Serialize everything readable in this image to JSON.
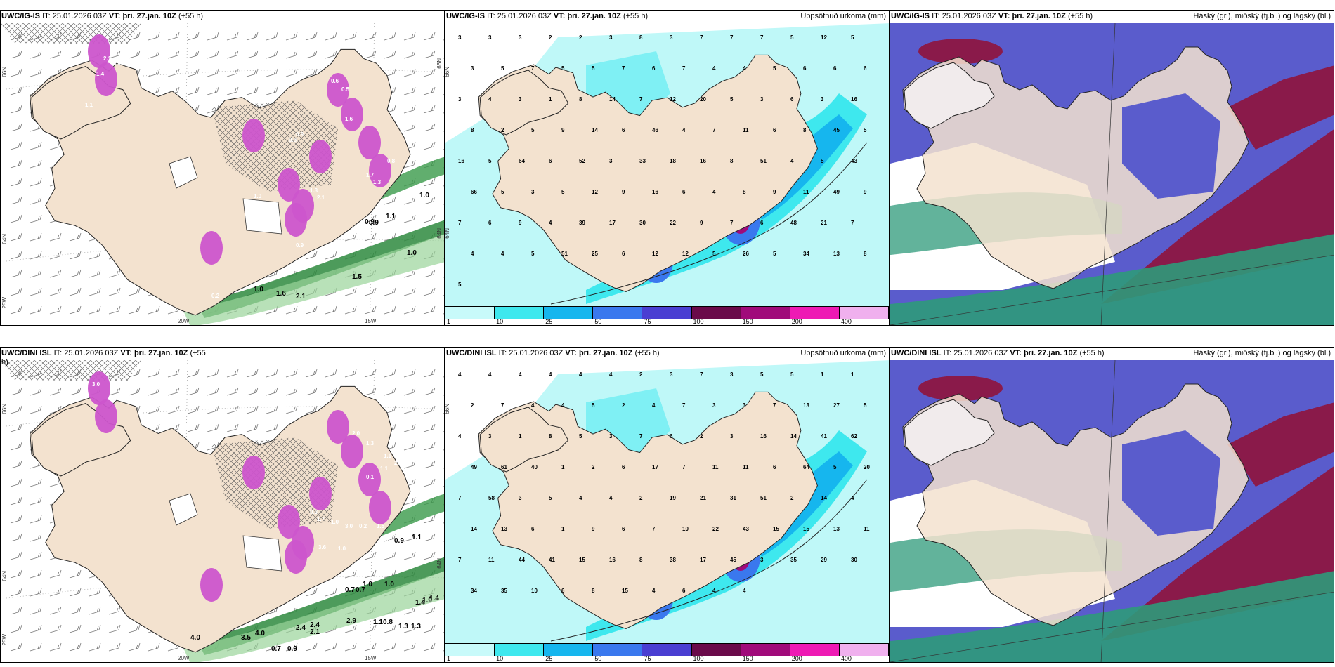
{
  "panels": [
    {
      "model": "UWC/IG-IS",
      "it_label": "IT:",
      "it": "25.01.2026 03Z",
      "vt_label": "VT:",
      "vt": "þri. 27.jan. 10Z",
      "lead": "(+55 h)",
      "right_title": "",
      "axis": {
        "lat_top": "66N",
        "lat_right_top": "66N",
        "lat_mid": "64N",
        "lat_right_mid": "64N",
        "lon_left": "25W",
        "lon1": "20W",
        "lon2": "15W"
      },
      "dark_labels": [
        "1.0",
        "0.9",
        "1.1",
        "0.9",
        "1.0",
        "1.5",
        "2.1",
        "1.6",
        "1.0"
      ],
      "white_labels": [
        "0.6",
        "1.3",
        "2.1",
        "1.4",
        "1.1",
        "0.8",
        "0.9",
        "1.6",
        "1.7",
        "1.3",
        "0.8",
        "1.3",
        "2.1",
        "1.0",
        "0.9",
        "1.7",
        "0.2",
        "0.6",
        "0.5"
      ]
    },
    {
      "model": "UWC/IG-IS",
      "it_label": "IT:",
      "it": "25.01.2026 03Z",
      "vt_label": "VT:",
      "vt": "þri. 27.jan. 10Z",
      "lead": "(+55 h)",
      "right_title": "Uppsöfnuð úrkoma (mm)",
      "axis": {
        "lat_top": "66N",
        "lat_mid": "64N"
      },
      "values": [
        "3",
        "3",
        "3",
        "2",
        "2",
        "3",
        "8",
        "3",
        "7",
        "7",
        "7",
        "5",
        "12",
        "5",
        "3",
        "5",
        "7",
        "5",
        "5",
        "7",
        "6",
        "7",
        "4",
        "4",
        "5",
        "6",
        "6",
        "6",
        "3",
        "4",
        "3",
        "1",
        "8",
        "14",
        "7",
        "12",
        "20",
        "5",
        "3",
        "6",
        "3",
        "16",
        "8",
        "2",
        "5",
        "9",
        "14",
        "6",
        "46",
        "4",
        "7",
        "11",
        "6",
        "8",
        "45",
        "5",
        "16",
        "5",
        "64",
        "6",
        "52",
        "3",
        "33",
        "18",
        "16",
        "8",
        "51",
        "4",
        "5",
        "43",
        "66",
        "5",
        "3",
        "5",
        "12",
        "9",
        "16",
        "6",
        "4",
        "8",
        "9",
        "11",
        "49",
        "9",
        "7",
        "6",
        "9",
        "4",
        "39",
        "17",
        "30",
        "22",
        "9",
        "7",
        "6",
        "48",
        "21",
        "7",
        "4",
        "4",
        "5",
        "51",
        "25",
        "6",
        "12",
        "12",
        "5",
        "26",
        "5",
        "34",
        "13",
        "8",
        "5"
      ],
      "colorbar": {
        "labels": [
          "1",
          "10",
          "25",
          "50",
          "75",
          "100",
          "150",
          "200",
          "400"
        ],
        "colors": [
          "#c8fafa",
          "#3ee8ee",
          "#16b6ee",
          "#3a78ee",
          "#4a3ed2",
          "#6a0a4a",
          "#a00a7a",
          "#ee1ab4",
          "#f0b0ee"
        ]
      }
    },
    {
      "model": "UWC/IG-IS",
      "it_label": "IT:",
      "it": "25.01.2026 03Z",
      "vt_label": "VT:",
      "vt": "þri. 27.jan. 10Z",
      "lead": "(+55 h)",
      "right_title": "Háský (gr.), miðský (fj.bl.) og lágský (bl.)"
    },
    {
      "model": "UWC/DINI ISL",
      "it_label": "IT:",
      "it": "25.01.2026 03Z",
      "vt_label": "VT:",
      "vt": "þri. 27.jan. 10Z",
      "lead": "(+55",
      "lead2": "h)",
      "right_title": "",
      "axis": {
        "lat_top": "66N",
        "lat_mid": "64N",
        "lat_right_mid": "64N",
        "lon_left": "25W",
        "lon1": "20W",
        "lon2": "15W"
      },
      "dark_labels": [
        "0.9",
        "1.1",
        "0.7",
        "0.7",
        "1.0",
        "1.0",
        "1.9",
        "1.4",
        "2.4",
        "2.4",
        "2.9",
        "1.1",
        "0.8",
        "1.3",
        "1.3",
        "4.0",
        "3.5",
        "4.0",
        "2.1",
        "0.7",
        "0.9",
        "1.4"
      ],
      "white_labels": [
        "0.3",
        "3.0",
        "0.2",
        "0.3",
        "2.0",
        "1.3",
        "1.1",
        "2.3",
        "1.1",
        "0.1",
        "0.3",
        "1.7",
        "1.0",
        "3.0",
        "0.2",
        "1.5",
        "2.1",
        "3.6",
        "1.0",
        "1.2"
      ]
    },
    {
      "model": "UWC/DINI ISL",
      "it_label": "IT:",
      "it": "25.01.2026 03Z",
      "vt_label": "VT:",
      "vt": "þri. 27.jan. 10Z",
      "lead": "(+55 h)",
      "right_title": "Uppsöfnuð úrkoma (mm)",
      "axis": {
        "lat_top": "66N"
      },
      "values": [
        "4",
        "4",
        "4",
        "4",
        "4",
        "4",
        "2",
        "3",
        "7",
        "3",
        "5",
        "5",
        "1",
        "1",
        "2",
        "7",
        "4",
        "4",
        "5",
        "2",
        "4",
        "7",
        "3",
        "3",
        "7",
        "13",
        "27",
        "5",
        "4",
        "3",
        "1",
        "8",
        "5",
        "3",
        "7",
        "6",
        "2",
        "3",
        "16",
        "14",
        "41",
        "62",
        "49",
        "61",
        "40",
        "1",
        "2",
        "6",
        "17",
        "7",
        "11",
        "11",
        "6",
        "64",
        "5",
        "20",
        "7",
        "58",
        "3",
        "5",
        "4",
        "4",
        "2",
        "19",
        "21",
        "31",
        "51",
        "2",
        "14",
        "4",
        "14",
        "13",
        "6",
        "1",
        "9",
        "6",
        "7",
        "10",
        "22",
        "43",
        "15",
        "15",
        "13",
        "11",
        "7",
        "11",
        "44",
        "41",
        "15",
        "16",
        "8",
        "38",
        "17",
        "45",
        "3",
        "35",
        "29",
        "30",
        "34",
        "35",
        "10",
        "6",
        "8",
        "15",
        "4",
        "6",
        "4",
        "4"
      ],
      "colorbar": {
        "labels": [
          "1",
          "10",
          "25",
          "50",
          "75",
          "100",
          "150",
          "200",
          "400"
        ],
        "colors": [
          "#c8fafa",
          "#3ee8ee",
          "#16b6ee",
          "#3a78ee",
          "#4a3ed2",
          "#6a0a4a",
          "#a00a7a",
          "#ee1ab4",
          "#f0b0ee"
        ]
      }
    },
    {
      "model": "UWC/DINI ISL",
      "it_label": "IT:",
      "it": "25.01.2026 03Z",
      "vt_label": "VT:",
      "vt": "þri. 27.jan. 10Z",
      "lead": "(+55 h)",
      "right_title": "Háský (gr.), miðský (fj.bl.) og lágský (bl.)"
    }
  ],
  "colors": {
    "land": "#f3e2cf",
    "sea_precip_light": "#bff8f8",
    "cloud_mid": "#5a5ccc",
    "cloud_high": "#8a1a4a",
    "cloud_low": "#2e9a7a",
    "snow_pink": "#cc55cc"
  }
}
